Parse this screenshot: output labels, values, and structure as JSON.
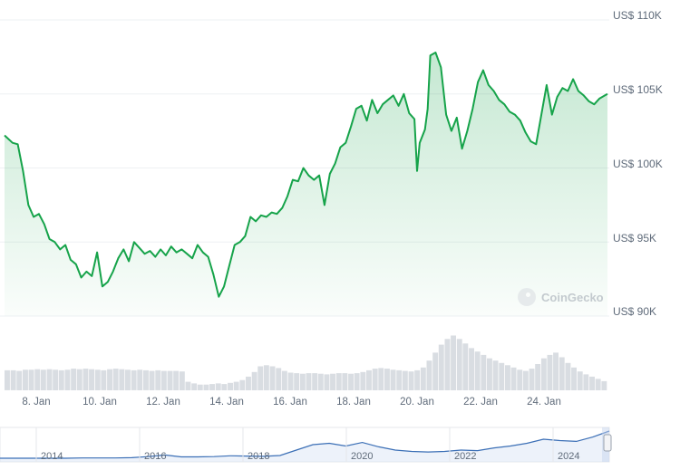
{
  "chart_data": {
    "type": "line",
    "title": "",
    "xlabel": "",
    "ylabel": "",
    "currency": "US$",
    "y_ticks": [
      "US$ 110K",
      "US$ 105K",
      "US$ 100K",
      "US$ 95K",
      "US$ 90K"
    ],
    "ylim": [
      90000,
      110000
    ],
    "x_ticks": [
      "8. Jan",
      "10. Jan",
      "12. Jan",
      "14. Jan",
      "16. Jan",
      "18. Jan",
      "20. Jan",
      "22. Jan",
      "24. Jan"
    ],
    "x_start": "2025-01-07",
    "x_end": "2025-01-26",
    "series": [
      {
        "color": "#16a34a",
        "points": [
          [
            "2025-01-07 00:00",
            102200
          ],
          [
            "2025-01-07 06:00",
            101700
          ],
          [
            "2025-01-07 10:00",
            101600
          ],
          [
            "2025-01-07 14:00",
            99800
          ],
          [
            "2025-01-07 18:00",
            97500
          ],
          [
            "2025-01-07 22:00",
            96700
          ],
          [
            "2025-01-08 02:00",
            96900
          ],
          [
            "2025-01-08 06:00",
            96200
          ],
          [
            "2025-01-08 10:00",
            95200
          ],
          [
            "2025-01-08 14:00",
            95000
          ],
          [
            "2025-01-08 18:00",
            94500
          ],
          [
            "2025-01-08 22:00",
            94800
          ],
          [
            "2025-01-09 02:00",
            93800
          ],
          [
            "2025-01-09 06:00",
            93500
          ],
          [
            "2025-01-09 10:00",
            92600
          ],
          [
            "2025-01-09 14:00",
            93000
          ],
          [
            "2025-01-09 18:00",
            92700
          ],
          [
            "2025-01-09 22:00",
            94300
          ],
          [
            "2025-01-10 02:00",
            92000
          ],
          [
            "2025-01-10 06:00",
            92300
          ],
          [
            "2025-01-10 10:00",
            93000
          ],
          [
            "2025-01-10 14:00",
            93900
          ],
          [
            "2025-01-10 18:00",
            94500
          ],
          [
            "2025-01-10 22:00",
            93700
          ],
          [
            "2025-01-11 02:00",
            95000
          ],
          [
            "2025-01-11 06:00",
            94600
          ],
          [
            "2025-01-11 10:00",
            94200
          ],
          [
            "2025-01-11 14:00",
            94400
          ],
          [
            "2025-01-11 18:00",
            94000
          ],
          [
            "2025-01-11 22:00",
            94500
          ],
          [
            "2025-01-12 02:00",
            94100
          ],
          [
            "2025-01-12 06:00",
            94700
          ],
          [
            "2025-01-12 10:00",
            94300
          ],
          [
            "2025-01-12 14:00",
            94500
          ],
          [
            "2025-01-12 18:00",
            94200
          ],
          [
            "2025-01-12 22:00",
            93900
          ],
          [
            "2025-01-13 02:00",
            94800
          ],
          [
            "2025-01-13 06:00",
            94300
          ],
          [
            "2025-01-13 10:00",
            94000
          ],
          [
            "2025-01-13 14:00",
            92800
          ],
          [
            "2025-01-13 18:00",
            91300
          ],
          [
            "2025-01-13 22:00",
            92000
          ],
          [
            "2025-01-14 02:00",
            93400
          ],
          [
            "2025-01-14 06:00",
            94800
          ],
          [
            "2025-01-14 10:00",
            95000
          ],
          [
            "2025-01-14 14:00",
            95400
          ],
          [
            "2025-01-14 18:00",
            96700
          ],
          [
            "2025-01-14 22:00",
            96400
          ],
          [
            "2025-01-15 02:00",
            96800
          ],
          [
            "2025-01-15 06:00",
            96700
          ],
          [
            "2025-01-15 10:00",
            97000
          ],
          [
            "2025-01-15 14:00",
            96900
          ],
          [
            "2025-01-15 18:00",
            97300
          ],
          [
            "2025-01-15 22:00",
            98100
          ],
          [
            "2025-01-16 02:00",
            99200
          ],
          [
            "2025-01-16 06:00",
            99100
          ],
          [
            "2025-01-16 10:00",
            100000
          ],
          [
            "2025-01-16 14:00",
            99500
          ],
          [
            "2025-01-16 18:00",
            99200
          ],
          [
            "2025-01-16 22:00",
            99500
          ],
          [
            "2025-01-17 02:00",
            97500
          ],
          [
            "2025-01-17 06:00",
            99600
          ],
          [
            "2025-01-17 10:00",
            100300
          ],
          [
            "2025-01-17 14:00",
            101400
          ],
          [
            "2025-01-17 18:00",
            101700
          ],
          [
            "2025-01-17 22:00",
            102800
          ],
          [
            "2025-01-18 02:00",
            104000
          ],
          [
            "2025-01-18 06:00",
            104200
          ],
          [
            "2025-01-18 10:00",
            103200
          ],
          [
            "2025-01-18 14:00",
            104600
          ],
          [
            "2025-01-18 18:00",
            103700
          ],
          [
            "2025-01-18 22:00",
            104300
          ],
          [
            "2025-01-19 02:00",
            104600
          ],
          [
            "2025-01-19 06:00",
            104900
          ],
          [
            "2025-01-19 10:00",
            104200
          ],
          [
            "2025-01-19 14:00",
            105000
          ],
          [
            "2025-01-19 18:00",
            103700
          ],
          [
            "2025-01-19 22:00",
            103300
          ],
          [
            "2025-01-20 00:00",
            99800
          ],
          [
            "2025-01-20 02:00",
            101700
          ],
          [
            "2025-01-20 06:00",
            102600
          ],
          [
            "2025-01-20 08:00",
            104000
          ],
          [
            "2025-01-20 10:00",
            107600
          ],
          [
            "2025-01-20 14:00",
            107800
          ],
          [
            "2025-01-20 18:00",
            106800
          ],
          [
            "2025-01-20 22:00",
            103600
          ],
          [
            "2025-01-21 02:00",
            102500
          ],
          [
            "2025-01-21 06:00",
            103400
          ],
          [
            "2025-01-21 10:00",
            101300
          ],
          [
            "2025-01-21 14:00",
            102500
          ],
          [
            "2025-01-21 18:00",
            104000
          ],
          [
            "2025-01-21 22:00",
            105800
          ],
          [
            "2025-01-22 02:00",
            106600
          ],
          [
            "2025-01-22 06:00",
            105600
          ],
          [
            "2025-01-22 10:00",
            105200
          ],
          [
            "2025-01-22 14:00",
            104600
          ],
          [
            "2025-01-22 18:00",
            104300
          ],
          [
            "2025-01-22 22:00",
            103800
          ],
          [
            "2025-01-23 02:00",
            103600
          ],
          [
            "2025-01-23 06:00",
            103200
          ],
          [
            "2025-01-23 10:00",
            102400
          ],
          [
            "2025-01-23 14:00",
            101800
          ],
          [
            "2025-01-23 18:00",
            101600
          ],
          [
            "2025-01-23 22:00",
            103600
          ],
          [
            "2025-01-24 02:00",
            105600
          ],
          [
            "2025-01-24 06:00",
            103600
          ],
          [
            "2025-01-24 10:00",
            104800
          ],
          [
            "2025-01-24 14:00",
            105400
          ],
          [
            "2025-01-24 18:00",
            105200
          ],
          [
            "2025-01-24 22:00",
            106000
          ],
          [
            "2025-01-25 02:00",
            105200
          ],
          [
            "2025-01-25 06:00",
            104900
          ],
          [
            "2025-01-25 10:00",
            104500
          ],
          [
            "2025-01-25 14:00",
            104300
          ],
          [
            "2025-01-25 18:00",
            104700
          ],
          [
            "2025-01-25 22:00",
            104900
          ],
          [
            "2025-01-26 00:00",
            105000
          ]
        ]
      }
    ],
    "volume": {
      "color": "#d9dde2",
      "note_max_day": "2025-01-20",
      "values_relative": [
        0.35,
        0.35,
        0.34,
        0.36,
        0.36,
        0.37,
        0.36,
        0.37,
        0.36,
        0.35,
        0.36,
        0.38,
        0.37,
        0.38,
        0.37,
        0.36,
        0.35,
        0.37,
        0.38,
        0.37,
        0.36,
        0.35,
        0.36,
        0.35,
        0.34,
        0.35,
        0.34,
        0.34,
        0.34,
        0.33,
        0.15,
        0.12,
        0.1,
        0.1,
        0.11,
        0.12,
        0.11,
        0.13,
        0.15,
        0.18,
        0.24,
        0.32,
        0.42,
        0.44,
        0.42,
        0.39,
        0.34,
        0.31,
        0.3,
        0.29,
        0.3,
        0.3,
        0.29,
        0.28,
        0.29,
        0.3,
        0.3,
        0.29,
        0.3,
        0.32,
        0.35,
        0.38,
        0.39,
        0.38,
        0.36,
        0.35,
        0.34,
        0.33,
        0.35,
        0.4,
        0.52,
        0.66,
        0.8,
        0.9,
        0.96,
        0.9,
        0.82,
        0.74,
        0.68,
        0.62,
        0.56,
        0.52,
        0.48,
        0.44,
        0.4,
        0.36,
        0.34,
        0.38,
        0.46,
        0.56,
        0.62,
        0.66,
        0.58,
        0.48,
        0.4,
        0.33,
        0.28,
        0.24,
        0.2,
        0.16
      ]
    },
    "navigator": {
      "x_ticks": [
        "2014",
        "2016",
        "2018",
        "2020",
        "2022",
        "2024"
      ],
      "series_relative": [
        0.0,
        0.0,
        0.0,
        0.0,
        0.0,
        0.01,
        0.01,
        0.01,
        0.02,
        0.06,
        0.12,
        0.05,
        0.05,
        0.06,
        0.09,
        0.08,
        0.07,
        0.1,
        0.3,
        0.5,
        0.55,
        0.45,
        0.58,
        0.42,
        0.3,
        0.25,
        0.23,
        0.25,
        0.3,
        0.28,
        0.38,
        0.45,
        0.55,
        0.7,
        0.65,
        0.62,
        0.78,
        1.0
      ]
    }
  },
  "watermark": {
    "text": "CoinGecko"
  }
}
